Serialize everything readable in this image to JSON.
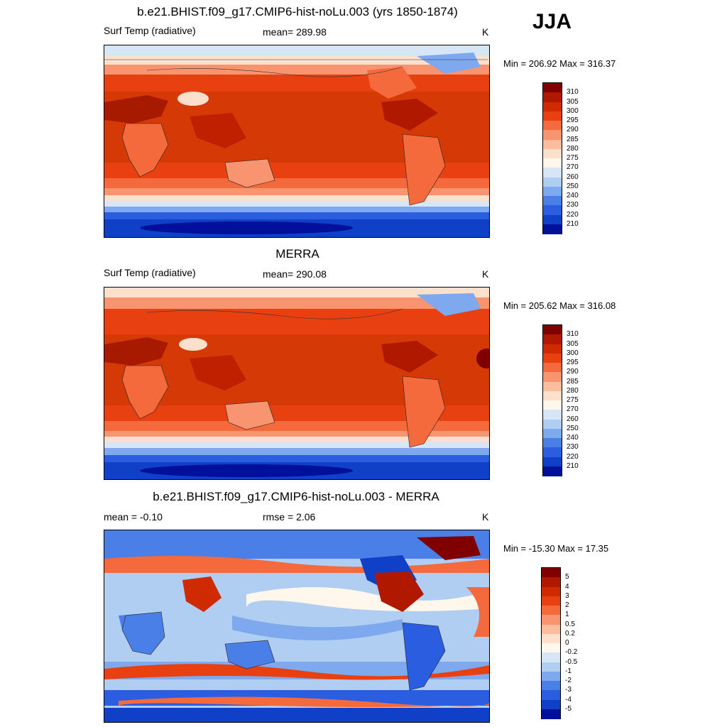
{
  "season": "JJA",
  "panels": [
    {
      "title": "b.e21.BHIST.f09_g17.CMIP6-hist-noLu.003 (yrs 1850-1874)",
      "left_label": "Surf Temp (radiative)",
      "mid_label": "mean= 289.98",
      "unit": "K",
      "minmax": "Min = 206.92 Max = 316.37",
      "colorbar_labels": [
        "310",
        "305",
        "300",
        "295",
        "290",
        "285",
        "280",
        "275",
        "270",
        "260",
        "250",
        "240",
        "230",
        "220",
        "210"
      ],
      "colorbar_colors": [
        "#800000",
        "#b01800",
        "#d02a00",
        "#e84010",
        "#f46a3c",
        "#f89470",
        "#fcbc9e",
        "#fde0cc",
        "#fff7ec",
        "#d7e6f7",
        "#b0cdf2",
        "#7ea9ee",
        "#4a7fe8",
        "#2a5de0",
        "#1040c8",
        "#00109a"
      ]
    },
    {
      "title": "MERRA",
      "left_label": "Surf Temp (radiative)",
      "mid_label": "mean= 290.08",
      "unit": "K",
      "minmax": "Min = 205.62 Max = 316.08",
      "colorbar_labels": [
        "310",
        "305",
        "300",
        "295",
        "290",
        "285",
        "280",
        "275",
        "270",
        "260",
        "250",
        "240",
        "230",
        "220",
        "210"
      ],
      "colorbar_colors": [
        "#800000",
        "#b01800",
        "#d02a00",
        "#e84010",
        "#f46a3c",
        "#f89470",
        "#fcbc9e",
        "#fde0cc",
        "#fff7ec",
        "#d7e6f7",
        "#b0cdf2",
        "#7ea9ee",
        "#4a7fe8",
        "#2a5de0",
        "#1040c8",
        "#00109a"
      ]
    },
    {
      "title": "b.e21.BHIST.f09_g17.CMIP6-hist-noLu.003 - MERRA",
      "left_label": "mean =  -0.10",
      "mid_label": "rmse =   2.06",
      "unit": "K",
      "minmax": "Min = -15.30 Max =  17.35",
      "colorbar_labels": [
        "5",
        "4",
        "3",
        "2",
        "1",
        "0.5",
        "0.2",
        "0",
        "-0.2",
        "-0.5",
        "-1",
        "-2",
        "-3",
        "-4",
        "-5"
      ],
      "colorbar_colors": [
        "#800000",
        "#b01800",
        "#d02a00",
        "#e84010",
        "#f46a3c",
        "#f89470",
        "#fcbc9e",
        "#fde0cc",
        "#fff7ec",
        "#d7e6f7",
        "#b0cdf2",
        "#7ea9ee",
        "#4a7fe8",
        "#2a5de0",
        "#1040c8",
        "#00109a"
      ]
    }
  ]
}
